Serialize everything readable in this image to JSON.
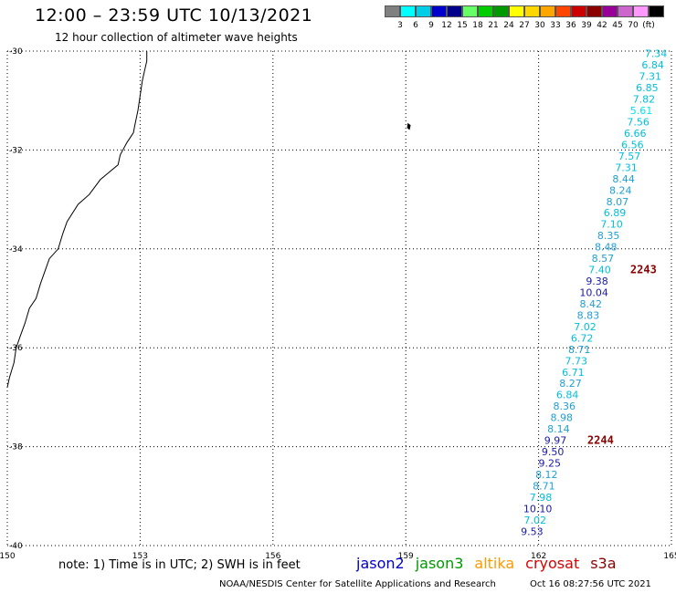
{
  "header": {
    "title": "12:00 – 23:59 UTC 10/13/2021",
    "subtitle": "12 hour collection of altimeter wave heights"
  },
  "legend": {
    "colors": [
      "#808080",
      "#00ffff",
      "#00cde6",
      "#0000cc",
      "#00008b",
      "#66ff66",
      "#00cc00",
      "#009900",
      "#ffff00",
      "#ffd700",
      "#ffa500",
      "#ff4500",
      "#cc0000",
      "#8b0000",
      "#990099",
      "#cc66cc",
      "#ff99ff",
      "#000000"
    ],
    "labels": [
      "3",
      "6",
      "9",
      "12",
      "15",
      "18",
      "21",
      "24",
      "27",
      "30",
      "33",
      "36",
      "39",
      "42",
      "45",
      "70",
      "(ft)"
    ]
  },
  "axes": {
    "lat_labels": [
      "-30",
      "-32",
      "-34",
      "-36",
      "-38",
      "-40"
    ],
    "lon_labels": [
      "150",
      "153",
      "156",
      "159",
      "162",
      "165"
    ],
    "lat_values": [
      -30,
      -32,
      -34,
      -36,
      -38,
      -40
    ],
    "lon_values": [
      150,
      153,
      156,
      159,
      162,
      165
    ]
  },
  "observations": [
    {
      "v": "7.34",
      "lon": 164.65,
      "lat": -30.05,
      "color": "#00bfdc"
    },
    {
      "v": "6.84",
      "lon": 164.58,
      "lat": -30.28,
      "color": "#00bfdc"
    },
    {
      "v": "7.31",
      "lon": 164.52,
      "lat": -30.51,
      "color": "#00bfdc"
    },
    {
      "v": "6.85",
      "lon": 164.45,
      "lat": -30.74,
      "color": "#00bfdc"
    },
    {
      "v": "7.82",
      "lon": 164.38,
      "lat": -30.97,
      "color": "#00bfdc"
    },
    {
      "v": "5.61",
      "lon": 164.32,
      "lat": -31.2,
      "color": "#00e5f0"
    },
    {
      "v": "7.56",
      "lon": 164.25,
      "lat": -31.43,
      "color": "#00bfdc"
    },
    {
      "v": "6.66",
      "lon": 164.18,
      "lat": -31.66,
      "color": "#00bfdc"
    },
    {
      "v": "6.56",
      "lon": 164.12,
      "lat": -31.89,
      "color": "#00bfdc"
    },
    {
      "v": "7.57",
      "lon": 164.05,
      "lat": -32.12,
      "color": "#00bfdc"
    },
    {
      "v": "7.31",
      "lon": 163.98,
      "lat": -32.35,
      "color": "#00bfdc"
    },
    {
      "v": "8.44",
      "lon": 163.92,
      "lat": -32.58,
      "color": "#1f9fd6"
    },
    {
      "v": "8.24",
      "lon": 163.85,
      "lat": -32.81,
      "color": "#1f9fd6"
    },
    {
      "v": "8.07",
      "lon": 163.78,
      "lat": -33.04,
      "color": "#1f9fd6"
    },
    {
      "v": "6.89",
      "lon": 163.72,
      "lat": -33.27,
      "color": "#00bfdc"
    },
    {
      "v": "7.10",
      "lon": 163.65,
      "lat": -33.5,
      "color": "#00bfdc"
    },
    {
      "v": "8.35",
      "lon": 163.58,
      "lat": -33.73,
      "color": "#1f9fd6"
    },
    {
      "v": "8.48",
      "lon": 163.52,
      "lat": -33.96,
      "color": "#1f9fd6"
    },
    {
      "v": "8.57",
      "lon": 163.45,
      "lat": -34.19,
      "color": "#1f9fd6"
    },
    {
      "v": "7.40",
      "lon": 163.38,
      "lat": -34.42,
      "color": "#00bfdc"
    },
    {
      "v": "9.38",
      "lon": 163.32,
      "lat": -34.65,
      "color": "#1a1aa8"
    },
    {
      "v": "10.04",
      "lon": 163.25,
      "lat": -34.88,
      "color": "#1a1aa8"
    },
    {
      "v": "8.42",
      "lon": 163.18,
      "lat": -35.11,
      "color": "#1f9fd6"
    },
    {
      "v": "8.83",
      "lon": 163.12,
      "lat": -35.34,
      "color": "#1f9fd6"
    },
    {
      "v": "7.02",
      "lon": 163.05,
      "lat": -35.57,
      "color": "#00bfdc"
    },
    {
      "v": "6.72",
      "lon": 162.98,
      "lat": -35.8,
      "color": "#00bfdc"
    },
    {
      "v": "8.71",
      "lon": 162.92,
      "lat": -36.03,
      "color": "#1f9fd6"
    },
    {
      "v": "7.73",
      "lon": 162.85,
      "lat": -36.26,
      "color": "#00bfdc"
    },
    {
      "v": "6.71",
      "lon": 162.78,
      "lat": -36.49,
      "color": "#00bfdc"
    },
    {
      "v": "8.27",
      "lon": 162.72,
      "lat": -36.72,
      "color": "#1f9fd6"
    },
    {
      "v": "6.84",
      "lon": 162.65,
      "lat": -36.95,
      "color": "#00bfdc"
    },
    {
      "v": "8.36",
      "lon": 162.58,
      "lat": -37.18,
      "color": "#1f9fd6"
    },
    {
      "v": "8.98",
      "lon": 162.52,
      "lat": -37.41,
      "color": "#1f9fd6"
    },
    {
      "v": "8.14",
      "lon": 162.45,
      "lat": -37.64,
      "color": "#1f9fd6"
    },
    {
      "v": "9.97",
      "lon": 162.38,
      "lat": -37.87,
      "color": "#1a1aa8"
    },
    {
      "v": "9.50",
      "lon": 162.32,
      "lat": -38.1,
      "color": "#1a1aa8"
    },
    {
      "v": "9.25",
      "lon": 162.25,
      "lat": -38.33,
      "color": "#1a1aa8"
    },
    {
      "v": "8.12",
      "lon": 162.18,
      "lat": -38.56,
      "color": "#1f9fd6"
    },
    {
      "v": "8.71",
      "lon": 162.12,
      "lat": -38.79,
      "color": "#1f9fd6"
    },
    {
      "v": "7.98",
      "lon": 162.05,
      "lat": -39.02,
      "color": "#00bfdc"
    },
    {
      "v": "10.10",
      "lon": 161.98,
      "lat": -39.25,
      "color": "#1a1aa8"
    },
    {
      "v": "7.02",
      "lon": 161.92,
      "lat": -39.48,
      "color": "#00bfdc"
    },
    {
      "v": "9.53",
      "lon": 161.85,
      "lat": -39.71,
      "color": "#1a1aa8"
    }
  ],
  "time_labels": [
    {
      "text": "2243",
      "lon": 164.07,
      "lat": -34.42
    },
    {
      "text": "2244",
      "lon": 163.1,
      "lat": -37.87
    }
  ],
  "coastline": [
    [
      153.15,
      -30.0
    ],
    [
      153.15,
      -30.2
    ],
    [
      153.1,
      -30.4
    ],
    [
      153.05,
      -30.6
    ],
    [
      153.0,
      -30.9
    ],
    [
      152.95,
      -31.2
    ],
    [
      152.88,
      -31.5
    ],
    [
      152.85,
      -31.65
    ],
    [
      152.7,
      -31.85
    ],
    [
      152.55,
      -32.1
    ],
    [
      152.5,
      -32.3
    ],
    [
      152.3,
      -32.45
    ],
    [
      152.1,
      -32.6
    ],
    [
      151.85,
      -32.9
    ],
    [
      151.6,
      -33.1
    ],
    [
      151.35,
      -33.45
    ],
    [
      151.25,
      -33.7
    ],
    [
      151.15,
      -34.0
    ],
    [
      150.95,
      -34.2
    ],
    [
      150.85,
      -34.45
    ],
    [
      150.75,
      -34.7
    ],
    [
      150.65,
      -35.0
    ],
    [
      150.5,
      -35.2
    ],
    [
      150.4,
      -35.5
    ],
    [
      150.3,
      -35.75
    ],
    [
      150.2,
      -36.0
    ],
    [
      150.15,
      -36.3
    ],
    [
      150.05,
      -36.6
    ],
    [
      150.0,
      -36.8
    ]
  ],
  "islands": [
    [
      [
        159.05,
        -31.47
      ],
      [
        159.1,
        -31.5
      ],
      [
        159.08,
        -31.58
      ],
      [
        159.04,
        -31.55
      ]
    ]
  ],
  "note": {
    "text": "note: 1) Time is in UTC; 2) SWH is in feet"
  },
  "missions": [
    {
      "label": "jason2",
      "color": "#0000cc"
    },
    {
      "label": "jason3",
      "color": "#009900"
    },
    {
      "label": "altika",
      "color": "#ff9900"
    },
    {
      "label": "cryosat",
      "color": "#dd0000"
    },
    {
      "label": "s3a",
      "color": "#8b0000"
    }
  ],
  "footer": {
    "credit": "NOAA/NESDIS Center for Satellite Applications and Research",
    "timestamp": "Oct 16 08:27:56 UTC 2021"
  }
}
